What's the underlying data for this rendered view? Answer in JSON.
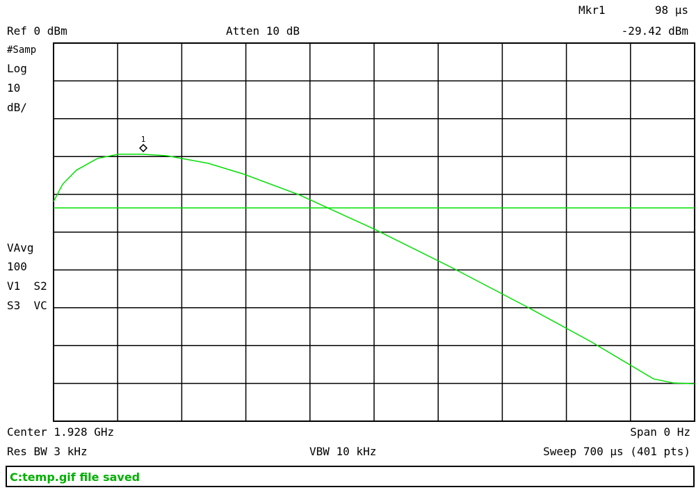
{
  "screen": {
    "header": {
      "ref": "Ref 0 dBm",
      "atten": "Atten 10 dB",
      "marker_name": "Mkr1"
    },
    "left_labels": [
      "#Samp",
      "Log",
      "10",
      "dB/"
    ],
    "avg_labels": [
      "VAvg",
      "100",
      "V1  S2",
      "S3  VC"
    ],
    "footer": {
      "center": "Center 1.928 GHz",
      "span": "Span 0 Hz",
      "rbw": "Res BW 3 kHz",
      "vbw": "VBW 10 kHz",
      "sweep": "Sweep 700 μs (401 pts)"
    },
    "status": "C:temp.gif file saved",
    "trace": {
      "color": "#00e000",
      "xlim": [
        0,
        700
      ],
      "ylim": [
        -100,
        0
      ],
      "grid_divisions": 10,
      "x": [
        0,
        10,
        25,
        48,
        71,
        97,
        124,
        169,
        207,
        268,
        351,
        435,
        518,
        587,
        655,
        677,
        700
      ],
      "values": [
        -41.9,
        -37.3,
        -33.6,
        -30.5,
        -29.4,
        -29.4,
        -29.8,
        -31.8,
        -34.6,
        -40.1,
        -49.3,
        -59.4,
        -69.9,
        -79.0,
        -88.8,
        -89.9,
        -90.1
      ],
      "display_line": -43.6
    },
    "marker": {
      "label": "1",
      "x": 98,
      "y": -29.42,
      "x_label": "98 μs",
      "y_label": "-29.42 dBm"
    }
  }
}
